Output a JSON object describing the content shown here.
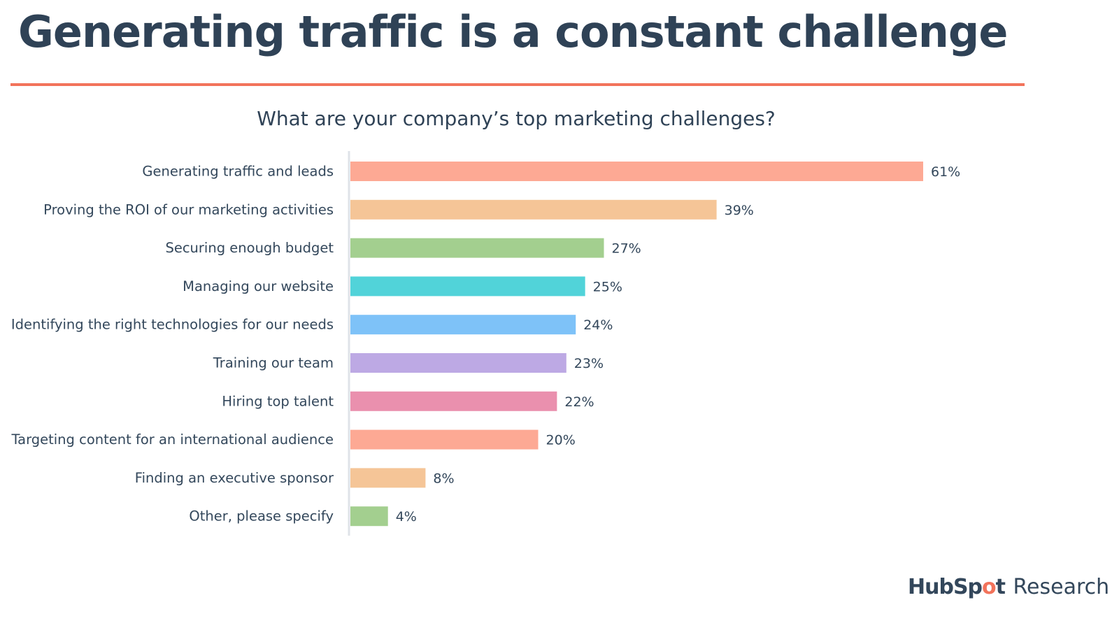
{
  "headline": "Generating traffic is a constant challenge",
  "question": "What are your company’s top marketing challenges?",
  "logo": {
    "brand_prefix": "HubSp",
    "brand_sprocket": "o",
    "brand_suffix": "t",
    "suffix": "Research"
  },
  "colors": {
    "headline": "#2f4256",
    "rule": "#f2735b",
    "axis": "#dfe3e8",
    "label_text": "#33475b"
  },
  "chart_data": {
    "type": "bar",
    "orientation": "horizontal",
    "title": "What are your company’s top marketing challenges?",
    "value_suffix": "%",
    "categories": [
      "Generating traffic and leads",
      "Proving the ROI of our marketing activities",
      "Securing enough budget",
      "Managing our website",
      "Identifying the right technologies for our needs",
      "Training our team",
      "Hiring top talent",
      "Targeting content for an international audience",
      "Finding an executive sponsor",
      "Other, please specify"
    ],
    "values": [
      61,
      39,
      27,
      25,
      24,
      23,
      22,
      20,
      8,
      4
    ],
    "value_labels": [
      "61%",
      "39%",
      "27%",
      "25%",
      "24%",
      "23%",
      "22%",
      "20%",
      "8%",
      "4%"
    ],
    "bar_colors": [
      "#fda994",
      "#f5c597",
      "#a3cf8f",
      "#51d3d9",
      "#7ec2f8",
      "#bda9e4",
      "#ea90ae",
      "#fda994",
      "#f5c597",
      "#a3cf8f"
    ],
    "xlim": [
      0,
      61
    ],
    "grid": false,
    "legend": "none"
  }
}
